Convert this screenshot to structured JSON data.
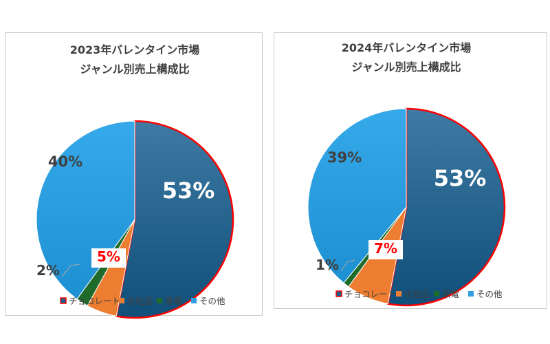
{
  "chart_data": [
    {
      "type": "pie",
      "title": "2023年バレンタイン市場",
      "subtitle": "ジャンル別売上構成比",
      "categories": [
        "チョコレート",
        "化粧品",
        "家電",
        "その他"
      ],
      "values": [
        53,
        5,
        2,
        40
      ],
      "data_labels": [
        "53%",
        "5%",
        "2%",
        "40%"
      ],
      "colors": [
        "#1f5c86",
        "#ed7d31",
        "#1e6b2c",
        "#2e9fe0"
      ],
      "highlight_outline": "#ff0000",
      "legend_position": "bottom"
    },
    {
      "type": "pie",
      "title": "2024年バレンタイン市場",
      "subtitle": "ジャンル別売上構成比",
      "categories": [
        "チョコレート",
        "化粧品",
        "家電",
        "その他"
      ],
      "values": [
        53,
        7,
        1,
        39
      ],
      "data_labels": [
        "53%",
        "7%",
        "1%",
        "39%"
      ],
      "colors": [
        "#1f5c86",
        "#ed7d31",
        "#1e6b2c",
        "#2e9fe0"
      ],
      "highlight_outline": "#ff0000",
      "legend_position": "bottom"
    }
  ]
}
